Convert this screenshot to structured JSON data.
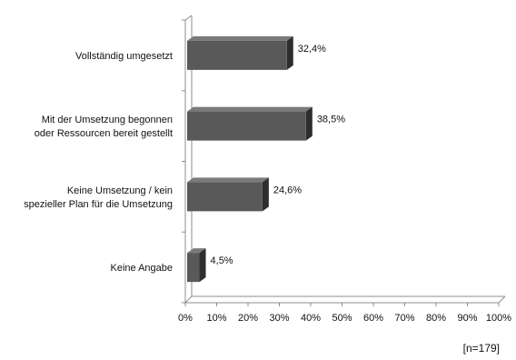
{
  "chart_data": {
    "type": "bar",
    "orientation": "horizontal",
    "categories": [
      [
        "Vollständig umgesetzt"
      ],
      [
        "Mit der Umsetzung begonnen",
        "oder Ressourcen bereit gestellt"
      ],
      [
        "Keine Umsetzung / kein",
        "spezieller Plan für die Umsetzung"
      ],
      [
        "Keine Angabe"
      ]
    ],
    "values": [
      32.4,
      38.5,
      24.6,
      4.5
    ],
    "value_labels": [
      "32,4%",
      "38,5%",
      "24,6%",
      "4,5%"
    ],
    "xlim": [
      0,
      100
    ],
    "x_ticks": [
      0,
      10,
      20,
      30,
      40,
      50,
      60,
      70,
      80,
      90,
      100
    ],
    "x_tick_labels": [
      "0%",
      "10%",
      "20%",
      "30%",
      "40%",
      "50%",
      "60%",
      "70%",
      "80%",
      "90%",
      "100%"
    ],
    "grid": false,
    "style_3d": true,
    "colors": {
      "bar_front": "#595959",
      "bar_top": "#7a7a7a",
      "bar_side": "#2e2e2e",
      "axis": "#8c8c8c"
    },
    "note": "[n=179]"
  }
}
